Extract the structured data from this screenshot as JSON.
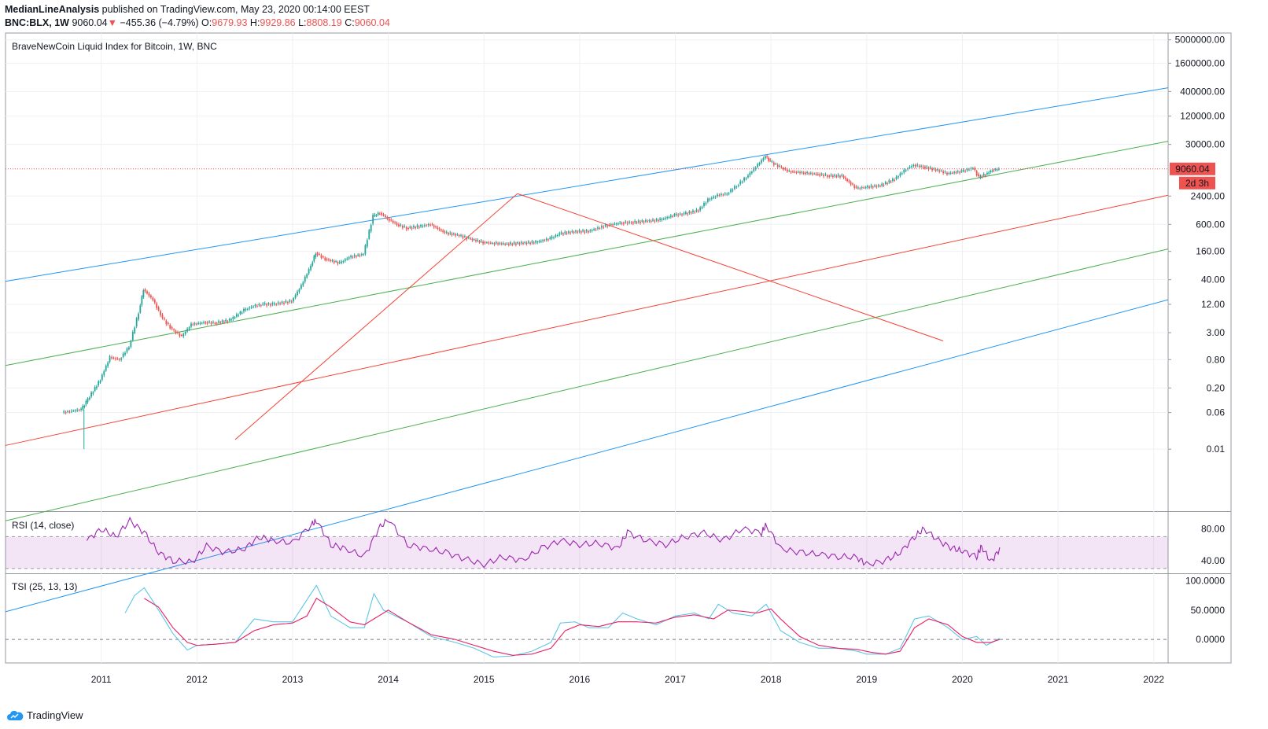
{
  "header": {
    "author": "MedianLineAnalysis",
    "published": "published on TradingView.com, May 23, 2020 00:14:00 EEST",
    "symbol": "BNC:BLX, 1W",
    "last": "9060.04",
    "down_arrow": "▼",
    "change": "−455.36 (−4.79%)",
    "o_label": "O:",
    "o": "9679.93",
    "h_label": "H:",
    "h": "9929.86",
    "l_label": "L:",
    "l": "8808.19",
    "c_label": "C:",
    "c": "9060.04"
  },
  "brand": "TradingView",
  "colors": {
    "up": "#26a69a",
    "down": "#ef5350",
    "blue": "#2196f3",
    "green": "#4caf50",
    "red": "#f44336",
    "rsi": "#9c27b0",
    "tsi": "#5ec6e8",
    "tsi_signal": "#e91e63"
  },
  "chart_data": [
    {
      "type": "candlestick",
      "title": "BraveNewCoin Liquid Index for Bitcoin, 1W, BNC",
      "y_scale": "log",
      "ylim": [
        0.0005,
        7000000
      ],
      "xlim": [
        2010.0,
        2022.15
      ],
      "x_ticks": [
        "2011",
        "2012",
        "2013",
        "2014",
        "2015",
        "2016",
        "2017",
        "2018",
        "2019",
        "2020",
        "2021",
        "2022"
      ],
      "y_ticks": [
        "0.01",
        "0.06",
        "0.20",
        "0.80",
        "3.00",
        "12.00",
        "40.00",
        "160.00",
        "600.00",
        "2400.00",
        "9060.04",
        "30000.00",
        "120000.00",
        "400000.00",
        "1600000.00",
        "5000000.00"
      ],
      "last_price": "9060.04",
      "countdown": "2d 3h",
      "series": [
        {
          "x": [
            2010.6,
            2010.8,
            2010.85,
            2011.0,
            2011.1,
            2011.2,
            2011.3,
            2011.4,
            2011.45,
            2011.55,
            2011.65,
            2011.75,
            2011.85,
            2011.95,
            2012.1,
            2012.2,
            2012.35,
            2012.5,
            2012.6,
            2012.7,
            2012.8,
            2013.0,
            2013.1,
            2013.2,
            2013.25,
            2013.35,
            2013.5,
            2013.6,
            2013.75,
            2013.85,
            2013.92,
            2014.0,
            2014.1,
            2014.2,
            2014.35,
            2014.45,
            2014.6,
            2014.75,
            2014.85,
            2015.0,
            2015.1,
            2015.25,
            2015.4,
            2015.55,
            2015.7,
            2015.8,
            2015.95,
            2016.1,
            2016.3,
            2016.45,
            2016.55,
            2016.7,
            2016.85,
            2017.0,
            2017.1,
            2017.25,
            2017.35,
            2017.45,
            2017.55,
            2017.65,
            2017.75,
            2017.85,
            2017.95,
            2018.0,
            2018.1,
            2018.2,
            2018.35,
            2018.5,
            2018.6,
            2018.75,
            2018.9,
            2019.0,
            2019.15,
            2019.3,
            2019.42,
            2019.5,
            2019.6,
            2019.75,
            2019.85,
            2020.0,
            2020.12,
            2020.18,
            2020.25,
            2020.32,
            2020.39
          ],
          "values": [
            0.06,
            0.07,
            0.1,
            0.3,
            0.9,
            0.8,
            1.5,
            8,
            25,
            15,
            6,
            3.5,
            2.5,
            4.5,
            5,
            4.8,
            5.5,
            9,
            11,
            12,
            12,
            14,
            30,
            80,
            150,
            110,
            90,
            120,
            140,
            900,
            1050,
            800,
            600,
            500,
            550,
            600,
            400,
            350,
            300,
            250,
            240,
            230,
            240,
            250,
            300,
            380,
            420,
            430,
            580,
            650,
            660,
            700,
            750,
            950,
            1000,
            1200,
            2000,
            2500,
            2700,
            4000,
            6000,
            10000,
            17000,
            13000,
            10000,
            8000,
            7500,
            7000,
            6500,
            6400,
            3500,
            3700,
            4000,
            5500,
            9000,
            11000,
            10000,
            8500,
            7300,
            8000,
            9500,
            6000,
            7000,
            8500,
            9060
          ]
        }
      ]
    },
    {
      "type": "line",
      "title": "RSI (14, close)",
      "ylim": [
        25,
        100
      ],
      "y_ticks": [
        "80.00",
        "40.00"
      ],
      "band": [
        30,
        70
      ],
      "series": [
        {
          "x": [
            2010.85,
            2011.0,
            2011.15,
            2011.3,
            2011.45,
            2011.6,
            2011.75,
            2011.95,
            2012.1,
            2012.3,
            2012.5,
            2012.65,
            2012.8,
            2013.0,
            2013.2,
            2013.25,
            2013.4,
            2013.55,
            2013.75,
            2013.9,
            2014.0,
            2014.2,
            2014.4,
            2014.6,
            2014.8,
            2015.0,
            2015.2,
            2015.4,
            2015.6,
            2015.8,
            2016.0,
            2016.2,
            2016.4,
            2016.5,
            2016.7,
            2016.9,
            2017.1,
            2017.3,
            2017.5,
            2017.7,
            2017.9,
            2017.95,
            2018.1,
            2018.3,
            2018.5,
            2018.7,
            2018.9,
            2019.0,
            2019.2,
            2019.35,
            2019.5,
            2019.6,
            2019.75,
            2019.9,
            2020.0,
            2020.15,
            2020.2,
            2020.3,
            2020.39
          ],
          "values": [
            65,
            80,
            70,
            90,
            75,
            50,
            40,
            38,
            58,
            50,
            55,
            70,
            65,
            62,
            85,
            90,
            60,
            55,
            45,
            80,
            92,
            60,
            55,
            50,
            42,
            35,
            45,
            40,
            55,
            65,
            60,
            62,
            55,
            75,
            65,
            60,
            70,
            75,
            65,
            80,
            75,
            85,
            55,
            50,
            48,
            45,
            44,
            35,
            40,
            50,
            70,
            80,
            65,
            55,
            52,
            45,
            58,
            38,
            55
          ]
        }
      ]
    },
    {
      "type": "line",
      "title": "TSI (25, 13, 13)",
      "ylim": [
        -40,
        110
      ],
      "y_ticks": [
        "100.0000",
        "50.0000",
        "0.0000"
      ],
      "series": [
        {
          "x": [
            2011.25,
            2011.35,
            2011.45,
            2011.6,
            2011.75,
            2011.9,
            2012.0,
            2012.2,
            2012.4,
            2012.6,
            2012.8,
            2013.0,
            2013.2,
            2013.25,
            2013.4,
            2013.6,
            2013.75,
            2013.85,
            2013.95,
            2014.2,
            2014.45,
            2014.7,
            2014.9,
            2015.1,
            2015.3,
            2015.5,
            2015.7,
            2015.8,
            2015.95,
            2016.1,
            2016.3,
            2016.45,
            2016.6,
            2016.8,
            2017.0,
            2017.2,
            2017.35,
            2017.45,
            2017.6,
            2017.8,
            2017.95,
            2018.1,
            2018.3,
            2018.5,
            2018.7,
            2018.9,
            2019.0,
            2019.2,
            2019.35,
            2019.5,
            2019.65,
            2019.85,
            2020.0,
            2020.15,
            2020.25,
            2020.39
          ],
          "values": [
            45,
            75,
            88,
            50,
            10,
            -18,
            -10,
            -8,
            -5,
            35,
            30,
            30,
            80,
            92,
            40,
            20,
            20,
            78,
            50,
            30,
            5,
            -5,
            -15,
            -30,
            -28,
            -20,
            -5,
            28,
            30,
            20,
            20,
            45,
            35,
            25,
            40,
            45,
            35,
            60,
            45,
            40,
            60,
            15,
            -5,
            -15,
            -15,
            -20,
            -25,
            -25,
            -15,
            35,
            40,
            20,
            0,
            5,
            -10,
            2
          ]
        },
        {
          "x": [
            2011.45,
            2011.6,
            2011.75,
            2011.9,
            2012.0,
            2012.2,
            2012.4,
            2012.6,
            2012.8,
            2013.0,
            2013.15,
            2013.25,
            2013.4,
            2013.6,
            2013.75,
            2013.9,
            2014.0,
            2014.2,
            2014.45,
            2014.7,
            2014.9,
            2015.1,
            2015.3,
            2015.5,
            2015.7,
            2015.85,
            2016.0,
            2016.2,
            2016.4,
            2016.6,
            2016.8,
            2017.0,
            2017.2,
            2017.4,
            2017.55,
            2017.7,
            2017.85,
            2018.0,
            2018.1,
            2018.3,
            2018.5,
            2018.7,
            2018.9,
            2019.05,
            2019.2,
            2019.35,
            2019.5,
            2019.65,
            2019.85,
            2020.0,
            2020.15,
            2020.3,
            2020.39
          ],
          "values": [
            70,
            55,
            20,
            -5,
            -10,
            -8,
            -5,
            15,
            25,
            28,
            40,
            70,
            55,
            30,
            25,
            40,
            50,
            30,
            8,
            0,
            -10,
            -20,
            -27,
            -25,
            -15,
            15,
            25,
            22,
            30,
            30,
            28,
            38,
            42,
            35,
            50,
            48,
            45,
            52,
            35,
            5,
            -10,
            -15,
            -17,
            -22,
            -25,
            -20,
            20,
            35,
            25,
            5,
            -5,
            -5,
            0
          ]
        }
      ]
    }
  ]
}
